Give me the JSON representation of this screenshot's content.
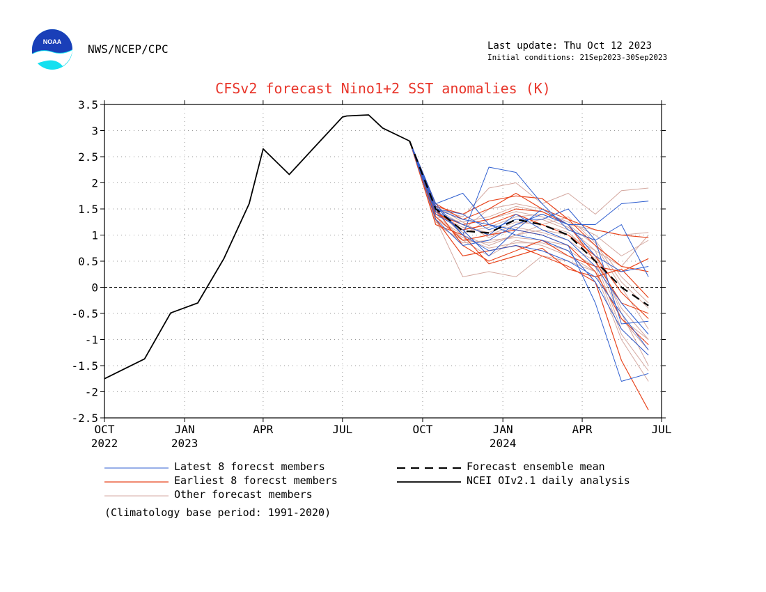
{
  "header": {
    "org": "NWS/NCEP/CPC",
    "last_update": "Last update: Thu Oct 12 2023",
    "initial_conditions": "Initial conditions: 21Sep2023-30Sep2023",
    "logo_text": "NOAA"
  },
  "note": "(Climatology base period: 1991-2020)",
  "colors": {
    "latest": "#2f5fd0",
    "earliest": "#e8461e",
    "other": "#d4a8a0",
    "title": "#e8352a"
  },
  "chart_data": {
    "type": "line",
    "title": "CFSv2 forecast Nino1+2 SST anomalies (K)",
    "ylim": [
      -2.5,
      3.5
    ],
    "yticks": [
      -2.5,
      -2,
      -1.5,
      -1,
      -0.5,
      0,
      0.5,
      1,
      1.5,
      2,
      2.5,
      3,
      3.5
    ],
    "ytick_labels": [
      "-2.5",
      "-2",
      "-1.5",
      "-1",
      "-0.5",
      "0",
      "0.5",
      "1",
      "1.5",
      "2",
      "2.5",
      "3",
      "3.5"
    ],
    "xlim": [
      "2022-10-01",
      "2024-07-01"
    ],
    "xticks": [
      {
        "date": "2022-10-01",
        "label": "OCT",
        "year": "2022"
      },
      {
        "date": "2023-01-01",
        "label": "JAN",
        "year": "2023"
      },
      {
        "date": "2023-04-01",
        "label": "APR",
        "year": ""
      },
      {
        "date": "2023-07-01",
        "label": "JUL",
        "year": ""
      },
      {
        "date": "2023-10-01",
        "label": "OCT",
        "year": ""
      },
      {
        "date": "2024-01-01",
        "label": "JAN",
        "year": "2024"
      },
      {
        "date": "2024-04-01",
        "label": "APR",
        "year": ""
      },
      {
        "date": "2024-07-01",
        "label": "JUL",
        "year": ""
      }
    ],
    "grid": true,
    "zero_line": true,
    "legend_placement": "bottom",
    "legend": [
      {
        "label": "Latest 8 forecst members",
        "style": "latest"
      },
      {
        "label": "Earliest 8 forecst members",
        "style": "earliest"
      },
      {
        "label": "Other forecast members",
        "style": "other"
      },
      {
        "label": "Forecast ensemble mean",
        "style": "mean"
      },
      {
        "label": "NCEI OIv2.1 daily analysis",
        "style": "obs"
      }
    ],
    "forecast_x": [
      "2023-09-16",
      "2023-10-16",
      "2023-11-16",
      "2023-12-16",
      "2024-01-16",
      "2024-02-15",
      "2024-03-16",
      "2024-04-16",
      "2024-05-16",
      "2024-06-16"
    ],
    "series": [
      {
        "name": "NCEI OIv2.1 daily analysis",
        "role": "obs",
        "x": [
          "2022-10-01",
          "2022-11-16",
          "2022-12-16",
          "2023-01-16",
          "2023-02-15",
          "2023-03-16",
          "2023-04-01",
          "2023-05-01",
          "2023-06-01",
          "2023-07-01",
          "2023-07-06",
          "2023-07-31",
          "2023-08-16",
          "2023-09-16"
        ],
        "y": [
          -1.75,
          -1.37,
          -0.49,
          -0.3,
          0.55,
          1.6,
          2.65,
          2.16,
          2.72,
          3.26,
          3.28,
          3.3,
          3.05,
          2.8
        ]
      },
      {
        "name": "Forecast ensemble mean",
        "role": "mean",
        "y": [
          2.8,
          1.5,
          1.08,
          1.04,
          1.3,
          1.2,
          1.0,
          0.5,
          0.0,
          -0.35
        ]
      }
    ],
    "members": [
      {
        "role": "latest",
        "y": [
          2.8,
          1.6,
          1.8,
          1.2,
          1.1,
          1.5,
          1.2,
          1.2,
          1.6,
          1.65
        ]
      },
      {
        "role": "latest",
        "y": [
          2.8,
          1.55,
          1.0,
          2.3,
          2.2,
          1.6,
          1.1,
          0.9,
          -0.7,
          -0.65
        ]
      },
      {
        "role": "latest",
        "y": [
          2.8,
          1.5,
          1.4,
          1.1,
          1.3,
          1.3,
          1.5,
          0.9,
          1.2,
          0.2
        ]
      },
      {
        "role": "latest",
        "y": [
          2.8,
          1.4,
          1.1,
          0.6,
          1.1,
          1.0,
          0.8,
          -0.3,
          -1.8,
          -1.65
        ]
      },
      {
        "role": "latest",
        "y": [
          2.8,
          1.6,
          1.0,
          0.7,
          0.8,
          0.7,
          0.5,
          0.2,
          -0.5,
          -1.2
        ]
      },
      {
        "role": "latest",
        "y": [
          2.8,
          1.3,
          0.8,
          0.9,
          1.2,
          1.4,
          1.2,
          0.6,
          0.3,
          0.4
        ]
      },
      {
        "role": "latest",
        "y": [
          2.8,
          1.45,
          1.2,
          1.0,
          1.4,
          1.1,
          0.9,
          0.4,
          -0.3,
          -0.9
        ]
      },
      {
        "role": "latest",
        "y": [
          2.8,
          1.5,
          1.3,
          1.2,
          1.0,
          0.9,
          0.7,
          0.1,
          -0.8,
          -1.3
        ]
      },
      {
        "role": "earliest",
        "y": [
          2.8,
          1.6,
          1.3,
          1.5,
          1.8,
          1.5,
          1.3,
          1.1,
          1.0,
          0.95
        ]
      },
      {
        "role": "earliest",
        "y": [
          2.8,
          1.3,
          0.6,
          0.7,
          0.8,
          0.6,
          0.4,
          0.1,
          -1.4,
          -2.35
        ]
      },
      {
        "role": "earliest",
        "y": [
          2.8,
          1.4,
          1.2,
          1.3,
          1.5,
          1.45,
          1.2,
          0.5,
          -0.3,
          -0.5
        ]
      },
      {
        "role": "earliest",
        "y": [
          2.8,
          1.5,
          0.8,
          0.5,
          0.7,
          0.9,
          0.6,
          0.4,
          0.3,
          0.55
        ]
      },
      {
        "role": "earliest",
        "y": [
          2.8,
          1.2,
          1.0,
          0.45,
          0.6,
          0.75,
          0.35,
          0.2,
          0.35,
          -0.2
        ]
      },
      {
        "role": "earliest",
        "y": [
          2.8,
          1.55,
          1.4,
          1.65,
          1.75,
          1.7,
          1.3,
          0.8,
          0.4,
          0.3
        ]
      },
      {
        "role": "earliest",
        "y": [
          2.8,
          1.35,
          0.9,
          1.0,
          1.1,
          1.0,
          0.8,
          0.3,
          -0.6,
          -1.1
        ]
      },
      {
        "role": "earliest",
        "y": [
          2.8,
          1.45,
          1.1,
          1.2,
          1.4,
          1.2,
          1.0,
          0.6,
          -0.1,
          -0.6
        ]
      },
      {
        "role": "other",
        "y": [
          2.8,
          1.5,
          1.35,
          1.9,
          2.0,
          1.6,
          1.8,
          1.4,
          1.85,
          1.9
        ]
      },
      {
        "role": "other",
        "y": [
          2.8,
          1.3,
          0.2,
          0.3,
          0.2,
          0.6,
          0.5,
          0.3,
          -0.6,
          -1.0
        ]
      },
      {
        "role": "other",
        "y": [
          2.8,
          1.4,
          1.1,
          1.5,
          1.6,
          1.5,
          1.2,
          1.1,
          1.0,
          1.05
        ]
      },
      {
        "role": "other",
        "y": [
          2.8,
          1.2,
          0.9,
          0.6,
          0.9,
          0.8,
          0.6,
          0.3,
          -1.0,
          -1.8
        ]
      },
      {
        "role": "other",
        "y": [
          2.8,
          1.35,
          1.0,
          0.8,
          1.0,
          1.1,
          1.0,
          0.7,
          -0.5,
          -1.5
        ]
      },
      {
        "role": "other",
        "y": [
          2.8,
          1.5,
          1.2,
          1.0,
          1.2,
          1.3,
          1.1,
          0.9,
          0.2,
          -0.3
        ]
      },
      {
        "role": "other",
        "y": [
          2.8,
          1.25,
          0.85,
          0.9,
          0.95,
          0.9,
          0.8,
          0.5,
          -0.8,
          -1.3
        ]
      },
      {
        "role": "other",
        "y": [
          2.8,
          1.45,
          1.05,
          1.15,
          1.35,
          1.4,
          1.2,
          0.8,
          0.0,
          -0.8
        ]
      },
      {
        "role": "other",
        "y": [
          2.8,
          1.55,
          1.25,
          1.35,
          1.55,
          1.45,
          1.25,
          1.0,
          0.6,
          0.9
        ]
      },
      {
        "role": "other",
        "y": [
          2.8,
          1.3,
          0.95,
          0.75,
          0.85,
          0.85,
          0.7,
          0.4,
          -0.9,
          -1.6
        ]
      },
      {
        "role": "other",
        "y": [
          2.8,
          1.4,
          1.15,
          1.05,
          1.25,
          1.2,
          1.05,
          0.6,
          -0.4,
          -1.0
        ]
      },
      {
        "role": "other",
        "y": [
          2.8,
          1.5,
          1.0,
          1.3,
          1.45,
          1.35,
          1.15,
          0.7,
          0.4,
          1.0
        ]
      },
      {
        "role": "other",
        "y": [
          2.8,
          1.35,
          1.25,
          0.95,
          1.15,
          1.05,
          0.9,
          0.55,
          -0.6,
          -1.2
        ]
      },
      {
        "role": "other",
        "y": [
          2.8,
          1.45,
          0.9,
          0.85,
          1.0,
          1.2,
          1.35,
          0.85,
          0.1,
          -0.4
        ]
      }
    ]
  }
}
